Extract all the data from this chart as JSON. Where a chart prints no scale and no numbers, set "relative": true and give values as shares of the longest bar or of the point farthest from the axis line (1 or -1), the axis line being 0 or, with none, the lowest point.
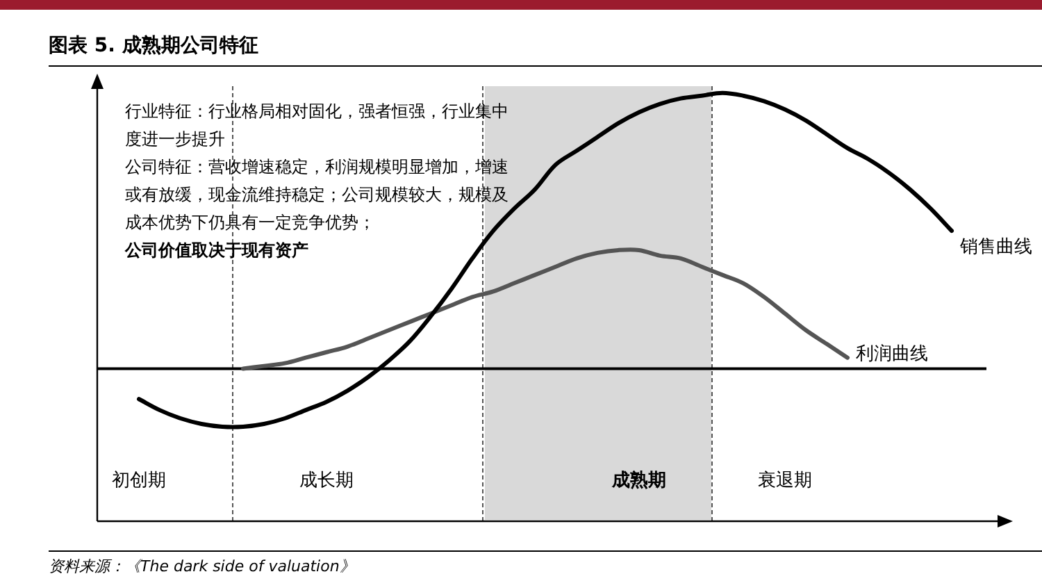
{
  "chart_data": {
    "type": "line",
    "title": "图表 5. 成熟期公司特征",
    "relative": true,
    "categories": [
      null,
      null,
      "初创期",
      null,
      null,
      null,
      null,
      null,
      null,
      null,
      null,
      "成长期",
      null,
      null,
      null,
      null,
      null,
      null,
      null,
      null,
      null,
      null,
      null,
      null,
      null,
      null,
      "成熟期",
      null,
      null,
      null,
      null,
      null,
      null,
      "衰退期",
      null,
      null,
      null,
      null,
      null,
      null,
      null,
      null,
      null,
      null
    ],
    "series": [
      {
        "name": "销售曲线",
        "color": "#000000",
        "values": [
          null,
          null,
          -0.11,
          -0.15,
          -0.18,
          -0.2,
          -0.21,
          -0.21,
          -0.2,
          -0.18,
          -0.15,
          -0.12,
          -0.08,
          -0.03,
          0.03,
          0.1,
          0.19,
          0.29,
          0.4,
          0.5,
          0.58,
          0.65,
          0.74,
          0.79,
          0.84,
          0.89,
          0.93,
          0.96,
          0.98,
          0.99,
          1.0,
          0.99,
          0.97,
          0.94,
          0.9,
          0.85,
          0.8,
          0.76,
          0.71,
          0.65,
          0.58,
          0.5,
          null,
          null
        ]
      },
      {
        "name": "利润曲线",
        "color": "#555555",
        "values": [
          null,
          null,
          null,
          null,
          null,
          null,
          null,
          0.0,
          0.01,
          0.02,
          0.04,
          0.06,
          0.08,
          0.11,
          0.14,
          0.17,
          0.2,
          0.23,
          0.26,
          0.28,
          0.31,
          0.34,
          0.37,
          0.4,
          0.42,
          0.43,
          0.43,
          0.41,
          0.4,
          0.37,
          0.34,
          0.31,
          0.26,
          0.2,
          0.14,
          0.09,
          0.04,
          null,
          null,
          null,
          null,
          null,
          null,
          null
        ]
      }
    ],
    "annotations": [
      "行业特征：行业格局相对固化，强者恒强，行业集中度进一步提升",
      "公司特征：营收增速稳定，利润规模明显增加，增速或有放缓，现金流维持稳定；公司规模较大，规模及成本优势下仍具有一定竞争优势；",
      "公司价值取决于现有资产",
      "资料来源：《The dark side of valuation》"
    ],
    "grid": false,
    "legend": false,
    "marker": "none",
    "line_style": "solid"
  }
}
